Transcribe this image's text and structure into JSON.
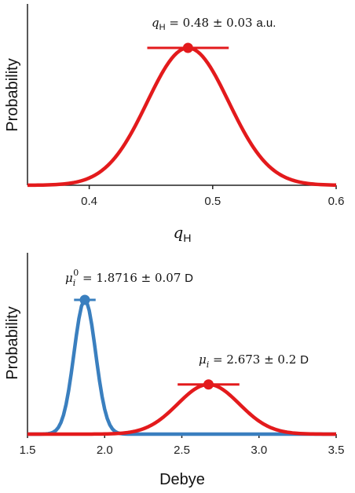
{
  "chart_data": [
    {
      "type": "line",
      "xlabel": "q",
      "xlabel_sub": "H",
      "ylabel": "Probability",
      "xlim": [
        0.35,
        0.6
      ],
      "xticks": [
        0.4,
        0.5,
        0.6
      ],
      "xtick_labels": [
        "0.4",
        "0.5",
        "0.6"
      ],
      "series": [
        {
          "color": "#e31a1c",
          "mean": 0.48,
          "sd": 0.033,
          "peak": 1.0,
          "x": [
            0.35,
            0.36,
            0.37,
            0.38,
            0.39,
            0.4,
            0.41,
            0.42,
            0.43,
            0.44,
            0.45,
            0.46,
            0.47,
            0.48,
            0.49,
            0.5,
            0.51,
            0.52,
            0.53,
            0.54,
            0.55,
            0.56,
            0.57,
            0.58,
            0.59,
            0.6
          ],
          "point": {
            "x": 0.48,
            "y": 1.0,
            "err_low": 0.447,
            "err_high": 0.513
          }
        }
      ],
      "annotation": {
        "symbol": "q",
        "sub": "H",
        "text": " = 0.48 ± 0.03 ",
        "unit": "a.u."
      }
    },
    {
      "type": "line",
      "xlabel": "Debye",
      "ylabel": "Probability",
      "xlim": [
        1.5,
        3.5
      ],
      "xticks": [
        1.5,
        2.0,
        2.5,
        3.0,
        3.5
      ],
      "xtick_labels": [
        "1.5",
        "2.0",
        "2.5",
        "3.0",
        "3.5"
      ],
      "series": [
        {
          "color": "#3a7fbf",
          "mean": 1.8716,
          "sd": 0.07,
          "peak": 1.0,
          "point": {
            "x": 1.8716,
            "y": 1.0,
            "err_low": 1.8016,
            "err_high": 1.9416
          }
        },
        {
          "color": "#e31a1c",
          "mean": 2.673,
          "sd": 0.2,
          "peak": 0.37,
          "point": {
            "x": 2.673,
            "y": 0.37,
            "err_low": 2.473,
            "err_high": 2.873
          }
        }
      ],
      "annotations": [
        {
          "symbol": "μ",
          "sub": "i",
          "sup": "0",
          "text": " = 1.8716 ± 0.07 ",
          "unit": "D"
        },
        {
          "symbol": "μ",
          "sub": "i",
          "text": " = 2.673 ± 0.2 ",
          "unit": "D"
        }
      ]
    }
  ]
}
